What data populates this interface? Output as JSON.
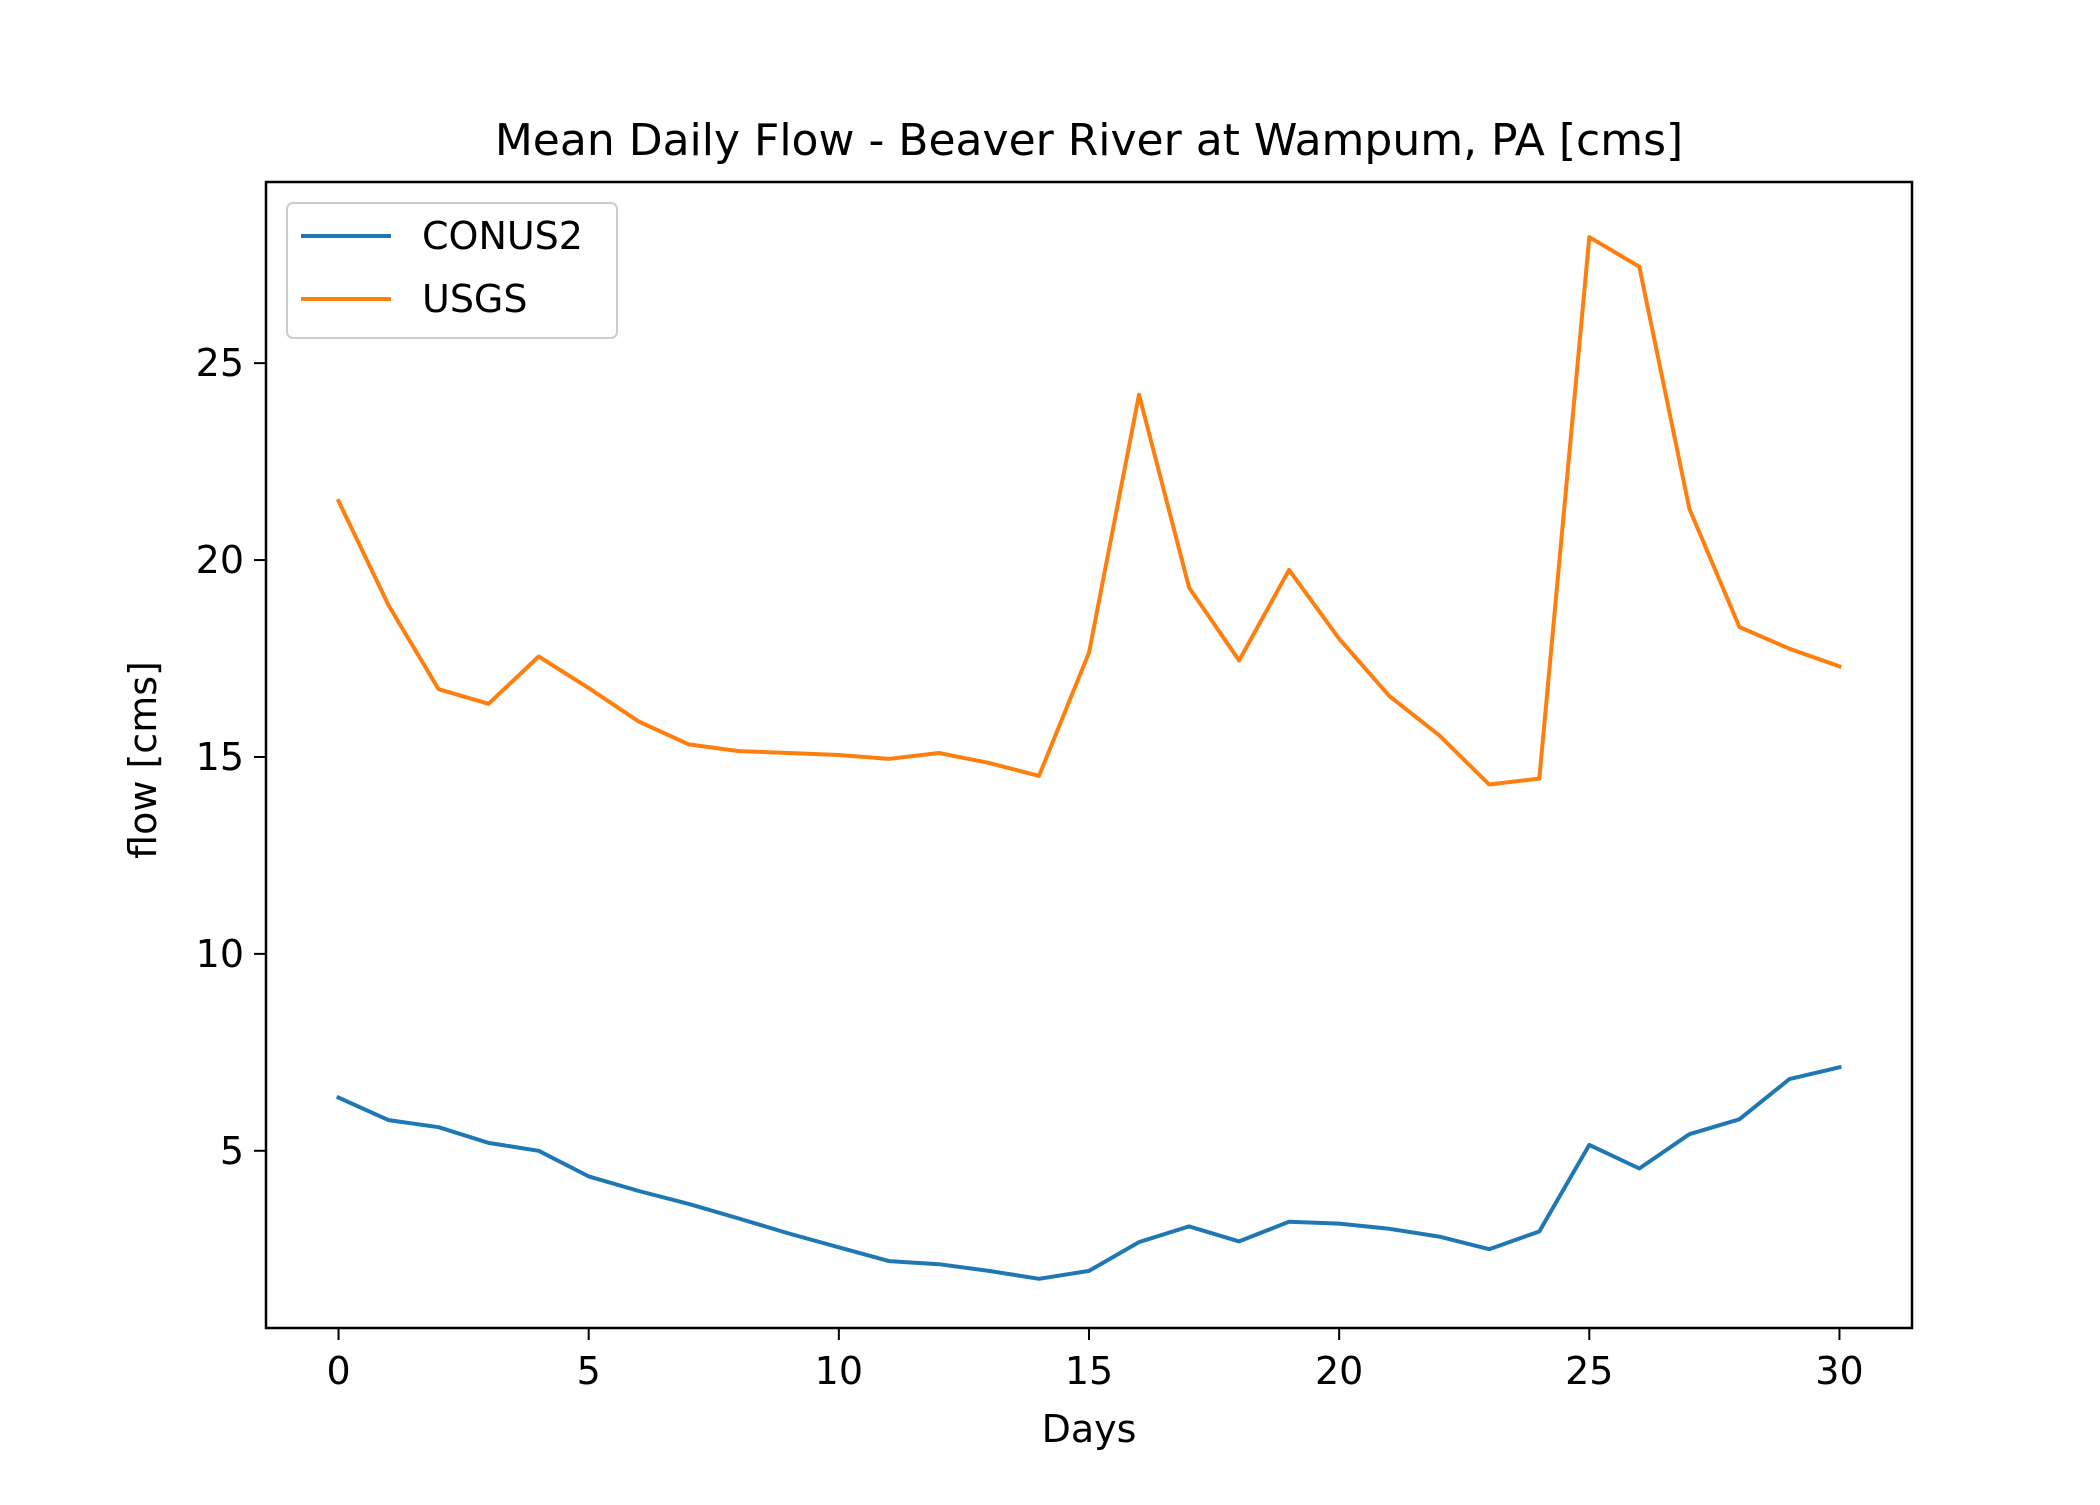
{
  "chart_data": {
    "type": "line",
    "title": "Mean Daily Flow - Beaver River at Wampum, PA [cms]",
    "xlabel": "Days",
    "ylabel": "flow [cms]",
    "xlim": [
      -1.45,
      31.45
    ],
    "ylim": [
      0.5,
      29.6
    ],
    "xticks": [
      0,
      5,
      10,
      15,
      20,
      25,
      30
    ],
    "yticks": [
      5,
      10,
      15,
      20,
      25
    ],
    "grid": false,
    "legend_position": "top-left",
    "x": [
      0,
      1,
      2,
      3,
      4,
      5,
      6,
      7,
      8,
      9,
      10,
      11,
      12,
      13,
      14,
      15,
      16,
      17,
      18,
      19,
      20,
      21,
      22,
      23,
      24,
      25,
      26,
      27,
      28,
      29,
      30
    ],
    "series": [
      {
        "name": "CONUS2",
        "color": "#1f77b4",
        "values": [
          6.35,
          5.78,
          5.6,
          5.2,
          5.0,
          4.35,
          3.98,
          3.65,
          3.28,
          2.9,
          2.55,
          2.2,
          2.12,
          1.95,
          1.75,
          1.95,
          2.68,
          3.08,
          2.7,
          3.2,
          3.15,
          3.02,
          2.82,
          2.5,
          2.95,
          5.15,
          4.55,
          5.42,
          5.8,
          6.82,
          7.12
        ]
      },
      {
        "name": "USGS",
        "color": "#ff7f0e",
        "values": [
          21.5,
          18.85,
          16.72,
          16.35,
          17.55,
          16.75,
          15.9,
          15.32,
          15.15,
          15.1,
          15.05,
          14.95,
          15.1,
          14.85,
          14.52,
          17.65,
          24.2,
          19.3,
          17.45,
          19.75,
          18.0,
          16.55,
          15.55,
          14.3,
          14.45,
          28.2,
          27.45,
          21.3,
          18.3,
          17.75,
          17.3
        ]
      }
    ]
  }
}
